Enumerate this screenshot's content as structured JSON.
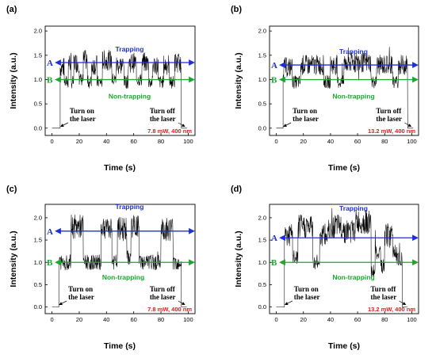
{
  "colors": {
    "trapping": "#1f2fd6",
    "nontrapping": "#1aa82e",
    "trace": "#000000",
    "condition": "#e0201b"
  },
  "chart_data": [
    {
      "panel": "(a)",
      "type": "line",
      "xlabel": "Time (s)",
      "ylabel": "Intensity (a.u.)",
      "xlim": [
        -5,
        105
      ],
      "ylim": [
        -0.15,
        2.1
      ],
      "xticks": [
        0,
        20,
        40,
        60,
        80,
        100
      ],
      "yticks": [
        0.0,
        0.5,
        1.0,
        1.5,
        2.0
      ],
      "levels": {
        "A": 1.35,
        "B": 1.0
      },
      "level_labels": {
        "A": "A",
        "B": "B"
      },
      "trapping_label": "Trapping",
      "nontrapping_label": "Non-trapping",
      "condition": "7.8 mW, 400 nm",
      "annotations": {
        "on": [
          "Turn on",
          "the laser"
        ],
        "off": [
          "Turn off",
          "the laser"
        ]
      },
      "laser_on": 6,
      "laser_off": 95,
      "segments": [
        [
          6,
          1.25
        ],
        [
          9,
          0.95
        ],
        [
          12,
          1.35
        ],
        [
          14,
          0.95
        ],
        [
          16,
          1.35
        ],
        [
          20,
          1.0
        ],
        [
          23,
          1.4
        ],
        [
          26,
          0.95
        ],
        [
          29,
          1.3
        ],
        [
          33,
          0.95
        ],
        [
          37,
          1.4
        ],
        [
          44,
          1.0
        ],
        [
          47,
          1.3
        ],
        [
          53,
          0.95
        ],
        [
          56,
          1.35
        ],
        [
          62,
          1.0
        ],
        [
          66,
          1.35
        ],
        [
          71,
          0.95
        ],
        [
          74,
          1.3
        ],
        [
          78,
          0.95
        ],
        [
          82,
          1.3
        ],
        [
          86,
          0.95
        ],
        [
          90,
          1.35
        ],
        [
          95,
          0.0
        ]
      ]
    },
    {
      "panel": "(b)",
      "type": "line",
      "xlabel": "Time (s)",
      "ylabel": "Intensity (a.u.)",
      "xlim": [
        -5,
        105
      ],
      "ylim": [
        -0.15,
        2.1
      ],
      "xticks": [
        0,
        20,
        40,
        60,
        80,
        100
      ],
      "yticks": [
        0.0,
        0.5,
        1.0,
        1.5,
        2.0
      ],
      "levels": {
        "A": 1.3,
        "B": 1.0
      },
      "level_labels": {
        "A": "A",
        "B": "B"
      },
      "trapping_label": "Trapping",
      "nontrapping_label": "Non-trapping",
      "condition": "13.2 mW, 400 nm",
      "annotations": {
        "on": [
          "Turn on",
          "the laser"
        ],
        "off": [
          "Turn off",
          "the laser"
        ]
      },
      "laser_on": 5,
      "laser_off": 97,
      "segments": [
        [
          5,
          1.25
        ],
        [
          12,
          0.95
        ],
        [
          18,
          1.3
        ],
        [
          35,
          0.95
        ],
        [
          40,
          1.3
        ],
        [
          45,
          0.95
        ],
        [
          50,
          1.35
        ],
        [
          70,
          0.95
        ],
        [
          74,
          1.3
        ],
        [
          86,
          0.95
        ],
        [
          90,
          1.3
        ],
        [
          97,
          0.0
        ]
      ]
    },
    {
      "panel": "(c)",
      "type": "line",
      "xlabel": "Time (s)",
      "ylabel": "Intensity (a.u.)",
      "xlim": [
        -5,
        105
      ],
      "ylim": [
        -0.15,
        2.3
      ],
      "xticks": [
        0,
        20,
        40,
        60,
        80,
        100
      ],
      "yticks": [
        0.0,
        0.5,
        1.0,
        1.5,
        2.0
      ],
      "levels": {
        "A": 1.7,
        "B": 1.0
      },
      "level_labels": {
        "A": "A",
        "B": "B"
      },
      "trapping_label": "Trapping",
      "nontrapping_label": "Non-trapping",
      "condition": "7.8 mW, 400 nm",
      "annotations": {
        "on": [
          "Turn on",
          "the laser"
        ],
        "off": [
          "Turn off",
          "the laser"
        ]
      },
      "laser_on": 5,
      "laser_off": 95,
      "segments": [
        [
          5,
          1.0
        ],
        [
          14,
          1.8
        ],
        [
          23,
          1.0
        ],
        [
          36,
          1.8
        ],
        [
          44,
          1.0
        ],
        [
          48,
          1.75
        ],
        [
          55,
          1.1
        ],
        [
          58,
          1.8
        ],
        [
          64,
          1.0
        ],
        [
          80,
          1.75
        ],
        [
          89,
          1.0
        ],
        [
          95,
          0.0
        ]
      ]
    },
    {
      "panel": "(d)",
      "type": "line",
      "xlabel": "Time (s)",
      "ylabel": "Intensity (a.u.)",
      "xlim": [
        -5,
        105
      ],
      "ylim": [
        -0.15,
        2.3
      ],
      "xticks": [
        0,
        20,
        40,
        60,
        80,
        100
      ],
      "yticks": [
        0.0,
        0.5,
        1.0,
        1.5,
        2.0
      ],
      "levels": {
        "A": 1.55,
        "B": 1.0
      },
      "level_labels": {
        "A": "A",
        "B": "B"
      },
      "trapping_label": "Trapping",
      "nontrapping_label": "Non-trapping",
      "condition": "13.2 mW, 400 nm",
      "annotations": {
        "on": [
          "Turn on",
          "the laser"
        ],
        "off": [
          "Turn off",
          "the laser"
        ]
      },
      "laser_on": 6,
      "laser_off": 93,
      "segments": [
        [
          6,
          1.6
        ],
        [
          12,
          1.1
        ],
        [
          16,
          1.8
        ],
        [
          27,
          1.0
        ],
        [
          32,
          1.6
        ],
        [
          38,
          1.8
        ],
        [
          50,
          1.7
        ],
        [
          58,
          1.9
        ],
        [
          70,
          0.8
        ],
        [
          73,
          1.2
        ],
        [
          77,
          0.9
        ],
        [
          80,
          1.6
        ],
        [
          86,
          1.3
        ],
        [
          89,
          1.1
        ],
        [
          93,
          0.0
        ]
      ]
    }
  ]
}
